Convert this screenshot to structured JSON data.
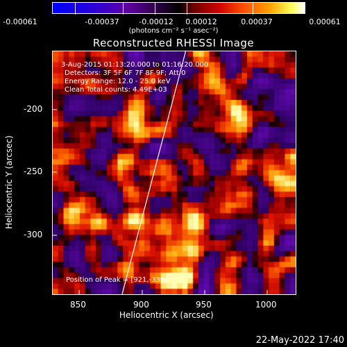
{
  "colorbar": {
    "ticks": [
      "-0.00061",
      "-0.00037",
      "-0.00012",
      "0.00012",
      "0.00037",
      "0.00061"
    ],
    "units": "(photons cm⁻² s⁻¹ asec⁻²)"
  },
  "title": "Reconstructed RHESSI Image",
  "info": {
    "time": "3-Aug-2015 01:13:20.000 to 01:16:20.000",
    "detectors": "Detectors: 3F 5F 6F 7F 8F 9F; Att 0",
    "energy": "Energy Range: 12.0 - 25.0 keV",
    "clean": "Clean    Total counts: 4.49E+03",
    "peak": "Position of Peak = [921,-339]"
  },
  "axes": {
    "xlabel": "Heliocentric X (arcsec)",
    "ylabel": "Heliocentric Y (arcsec)",
    "xticks": [
      "850",
      "900",
      "950",
      "1000"
    ],
    "yticks": [
      "-200",
      "-250",
      "-300"
    ]
  },
  "footer": {
    "timestamp": "22-May-2022 17:40"
  }
}
